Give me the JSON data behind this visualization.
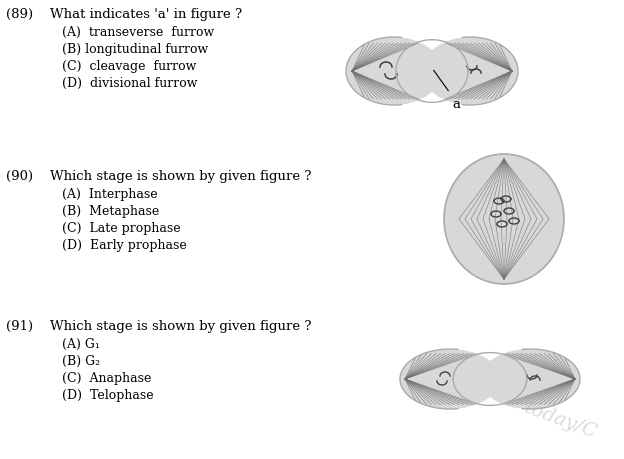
{
  "bg_color": "#ffffff",
  "questions": [
    {
      "number": "(89)",
      "question": "What indicates 'a' in figure ?",
      "options": [
        "(A)  transeverse  furrow",
        "(B) longitudinal furrow",
        "(C)  cleavage  furrow",
        "(D)  divisional furrow"
      ]
    },
    {
      "number": "(90)",
      "question": "Which stage is shown by given figure ?",
      "options": [
        "(A)  Interphase",
        "(B)  Metaphase",
        "(C)  Late prophase",
        "(D)  Early prophase"
      ]
    },
    {
      "number": "(91)",
      "question": "Which stage is shown by given figure ?",
      "options": [
        "(A) G₁",
        "(B) G₂",
        "(C)  Anaphase",
        "(D)  Telophase"
      ]
    }
  ],
  "watermark": "today/C",
  "cell_fill": "#d8d8d8",
  "cell_edge": "#aaaaaa",
  "spindle_color": "#707070",
  "chrom_color": "#404040"
}
